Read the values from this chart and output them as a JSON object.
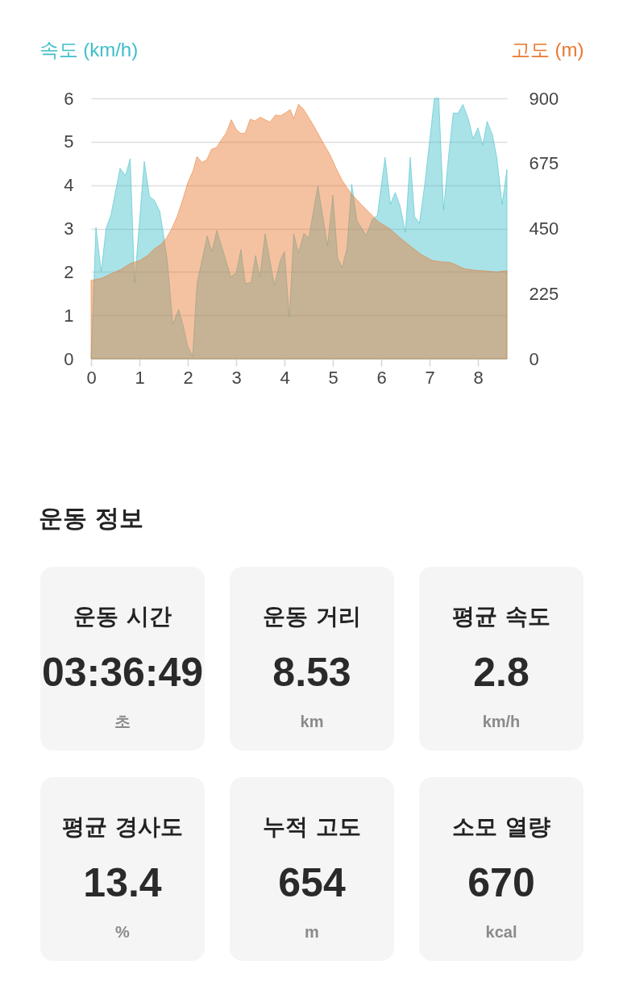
{
  "chart_data": [
    {
      "type": "area",
      "ylabel": "속도 (km/h)",
      "y2label": "고도 (m)",
      "xlim": [
        0,
        8.6
      ],
      "xticks": [
        0,
        1,
        2,
        3,
        4,
        5,
        6,
        7,
        8
      ],
      "ylim": [
        0,
        6
      ],
      "yticks": [
        0,
        1,
        2,
        3,
        4,
        5,
        6
      ],
      "y2lim": [
        0,
        900
      ],
      "y2ticks": [
        0,
        225,
        450,
        675,
        900
      ],
      "grid": "y",
      "series": [
        {
          "color": "#40bfca",
          "x": [
            0,
            0.1,
            0.21,
            0.31,
            0.41,
            0.6,
            0.71,
            0.81,
            0.9,
            1.1,
            1.21,
            1.31,
            1.42,
            1.5,
            1.58,
            1.69,
            1.81,
            1.91,
            2.0,
            2.1,
            2.19,
            2.4,
            2.5,
            2.6,
            2.89,
            3.0,
            3.1,
            3.19,
            3.31,
            3.4,
            3.49,
            3.6,
            3.79,
            3.92,
            4.0,
            4.1,
            4.19,
            4.29,
            4.4,
            4.5,
            4.69,
            4.89,
            5.0,
            5.1,
            5.19,
            5.29,
            5.39,
            5.5,
            5.69,
            5.82,
            5.92,
            6.08,
            6.19,
            6.29,
            6.39,
            6.5,
            6.6,
            6.69,
            6.79,
            6.9,
            7.1,
            7.19,
            7.29,
            7.39,
            7.49,
            7.59,
            7.69,
            7.81,
            7.9,
            8.0,
            8.1,
            8.19,
            8.3,
            8.39,
            8.5,
            8.6
          ],
          "values": [
            0,
            3.03,
            2.01,
            3.0,
            3.31,
            4.39,
            4.22,
            4.61,
            1.76,
            4.55,
            3.74,
            3.65,
            3.4,
            2.85,
            2.23,
            0.8,
            1.14,
            0.74,
            0.28,
            0.06,
            1.73,
            2.83,
            2.47,
            2.96,
            1.89,
            1.98,
            2.52,
            1.73,
            1.76,
            2.38,
            1.89,
            2.88,
            1.7,
            2.29,
            2.47,
            0.96,
            2.88,
            2.44,
            2.89,
            2.78,
            3.99,
            2.6,
            3.77,
            2.32,
            2.1,
            2.54,
            4.02,
            3.18,
            2.84,
            3.22,
            3.3,
            4.64,
            3.56,
            3.83,
            3.52,
            2.92,
            4.64,
            3.28,
            3.12,
            4.02,
            6.0,
            6.0,
            3.43,
            4.64,
            5.66,
            5.66,
            5.86,
            5.5,
            5.07,
            5.32,
            4.92,
            5.47,
            5.16,
            4.64,
            3.56,
            4.36
          ]
        },
        {
          "color": "#e9782f",
          "axis": "y2",
          "x": [
            0,
            0.22,
            0.39,
            0.61,
            0.81,
            1.0,
            1.17,
            1.31,
            1.44,
            1.56,
            1.67,
            1.78,
            1.89,
            2.0,
            2.11,
            2.19,
            2.29,
            2.39,
            2.49,
            2.6,
            2.69,
            2.79,
            2.9,
            3.0,
            3.1,
            3.19,
            3.29,
            3.39,
            3.5,
            3.6,
            3.7,
            3.81,
            3.92,
            4.01,
            4.12,
            4.19,
            4.29,
            4.4,
            4.58,
            4.78,
            4.94,
            5.08,
            5.19,
            5.36,
            5.56,
            5.75,
            5.94,
            6.17,
            6.39,
            6.61,
            6.83,
            7.06,
            7.28,
            7.39,
            7.5,
            7.72,
            7.94,
            8.17,
            8.39,
            8.6
          ],
          "values": [
            271,
            278,
            292,
            308,
            329,
            339,
            357,
            380,
            394,
            418,
            450,
            492,
            547,
            608,
            650,
            699,
            679,
            687,
            724,
            731,
            756,
            779,
            826,
            793,
            778,
            781,
            828,
            822,
            835,
            826,
            818,
            842,
            840,
            849,
            861,
            830,
            880,
            861,
            812,
            752,
            705,
            654,
            617,
            575,
            538,
            506,
            474,
            450,
            418,
            388,
            360,
            339,
            334,
            334,
            328,
            311,
            306,
            303,
            300,
            304
          ]
        }
      ]
    },
    {
      "type": "other",
      "title": "운동 정보",
      "categories": [
        "운동 시간",
        "운동 거리",
        "평균 속도",
        "평균 경사도",
        "누적 고도",
        "소모 열량"
      ],
      "value_labels": [
        "03:36:49",
        "8.53",
        "2.8",
        "13.4",
        "654",
        "670"
      ],
      "annotations": [
        "초",
        "km",
        "km/h",
        "%",
        "m",
        "kcal"
      ]
    }
  ]
}
